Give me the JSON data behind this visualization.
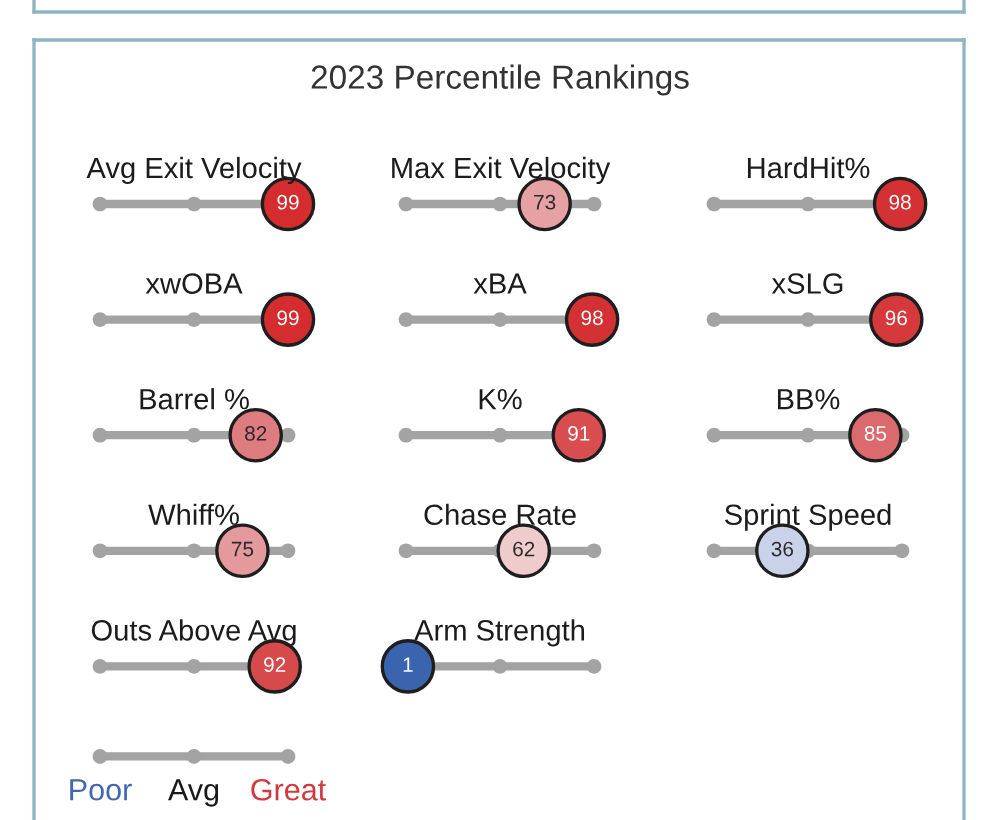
{
  "chart_data": {
    "type": "other",
    "title": "2023 Percentile Rankings",
    "categories": [
      "Avg Exit Velocity",
      "Max Exit Velocity",
      "HardHit%",
      "xwOBA",
      "xBA",
      "xSLG",
      "Barrel %",
      "K%",
      "BB%",
      "Whiff%",
      "Chase Rate",
      "Sprint Speed",
      "Outs Above Avg",
      "Arm Strength"
    ],
    "values": [
      99,
      73,
      98,
      99,
      98,
      96,
      82,
      91,
      85,
      75,
      62,
      36,
      92,
      1
    ],
    "colors": [
      "#d42c2f",
      "#e6a1a4",
      "#d33134",
      "#d42c2f",
      "#d33134",
      "#d5393b",
      "#de7c80",
      "#d74d50",
      "#da6a6d",
      "#e49a9d",
      "#f0cbcc",
      "#c9d2e8",
      "#d74a4c",
      "#3a64ad"
    ],
    "data_labels": true,
    "annotations": [
      "Poor",
      "Avg",
      "Great"
    ]
  }
}
